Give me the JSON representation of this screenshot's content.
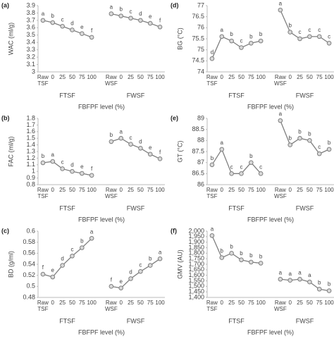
{
  "chart_data": [
    {
      "type": "line",
      "panel": "(a)",
      "y_label": "WAC (ml/g)",
      "x_label": "FBFPF level (%)",
      "groups": [
        "FTSF",
        "FWSF"
      ],
      "categories": [
        "Raw TSF",
        "0",
        "25",
        "50",
        "75",
        "100",
        null,
        "Raw WSF",
        "0",
        "25",
        "50",
        "75",
        "100"
      ],
      "series": [
        {
          "color": "#7f7f7f",
          "values": [
            3.7,
            3.67,
            3.62,
            3.57,
            3.52,
            3.47,
            null,
            3.79,
            3.76,
            3.73,
            3.7,
            3.66,
            3.61
          ]
        }
      ],
      "annotations": [
        "a",
        "b",
        "c",
        "d",
        "e",
        "f",
        null,
        "a",
        "b",
        "c",
        "d",
        "e",
        "f"
      ],
      "ylim": [
        3,
        3.9
      ],
      "yticks": [
        3,
        3.1,
        3.2,
        3.3,
        3.4,
        3.5,
        3.6,
        3.7,
        3.8,
        3.9
      ]
    },
    {
      "type": "line",
      "panel": "(d)",
      "y_label": "BG (°C)",
      "x_label": "FBFPF level (%)",
      "groups": [
        "FTSF",
        "FWSF"
      ],
      "categories": [
        "Raw TSF",
        "0",
        "25",
        "50",
        "75",
        "100",
        null,
        "Raw WSF",
        "0",
        "25",
        "50",
        "75",
        "100"
      ],
      "series": [
        {
          "color": "#7f7f7f",
          "values": [
            74.6,
            75.6,
            75.4,
            75.1,
            75.3,
            75.4,
            null,
            76.8,
            75.8,
            75.5,
            75.6,
            75.6,
            75.3
          ]
        }
      ],
      "annotations": [
        "d",
        "a",
        "b",
        "c",
        "b",
        "b",
        null,
        "a",
        "b",
        "c",
        "c",
        "c",
        "c"
      ],
      "ylim": [
        74,
        77
      ],
      "yticks": [
        74,
        74.5,
        75,
        75.5,
        76,
        76.5,
        77
      ]
    },
    {
      "type": "line",
      "panel": "(b)",
      "y_label": "FAC (ml/g)",
      "x_label": "FBFPF level (%)",
      "groups": [
        "FTSF",
        "FWSF"
      ],
      "categories": [
        "Raw TSF",
        "0",
        "25",
        "50",
        "75",
        "100",
        null,
        "Raw WSF",
        "0",
        "25",
        "50",
        "75",
        "100"
      ],
      "series": [
        {
          "color": "#7f7f7f",
          "values": [
            1.13,
            1.15,
            1.04,
            1.0,
            0.97,
            0.94,
            null,
            1.45,
            1.5,
            1.41,
            1.35,
            1.26,
            1.19
          ]
        }
      ],
      "annotations": [
        "b",
        "a",
        "c",
        "d",
        "e",
        "f",
        null,
        "b",
        "a",
        "c",
        "d",
        "e",
        "f"
      ],
      "ylim": [
        0.8,
        1.8
      ],
      "yticks": [
        0.8,
        0.9,
        1,
        1.1,
        1.2,
        1.3,
        1.4,
        1.5,
        1.6,
        1.7,
        1.8
      ]
    },
    {
      "type": "line",
      "panel": "(e)",
      "y_label": "GT (°C)",
      "x_label": "FBFPF level (%)",
      "groups": [
        "FTSF",
        "FWSF"
      ],
      "categories": [
        "Raw TSF",
        "0",
        "25",
        "50",
        "75",
        "100",
        null,
        "Raw WSF",
        "0",
        "25",
        "50",
        "75",
        "100"
      ],
      "series": [
        {
          "color": "#7f7f7f",
          "values": [
            86.9,
            87.6,
            86.5,
            86.5,
            87.0,
            86.5,
            null,
            88.9,
            87.8,
            88.1,
            88.0,
            87.4,
            87.6
          ]
        }
      ],
      "annotations": [
        "b",
        "a",
        "c",
        "c",
        "b",
        "c",
        null,
        "a",
        "b",
        "b",
        "b",
        "c",
        "b"
      ],
      "ylim": [
        86,
        89
      ],
      "yticks": [
        86,
        86.5,
        87,
        87.5,
        88,
        88.5,
        89
      ]
    },
    {
      "type": "line",
      "panel": "(c)",
      "y_label": "BD (g/ml)",
      "x_label": "FBFPF level (%)",
      "groups": [
        "FTSF",
        "FWSF"
      ],
      "categories": [
        "Raw TSF",
        "0",
        "25",
        "50",
        "75",
        "100",
        null,
        "Raw WSF",
        "0",
        "25",
        "50",
        "75",
        "100"
      ],
      "series": [
        {
          "color": "#7f7f7f",
          "values": [
            0.522,
            0.517,
            0.538,
            0.555,
            0.57,
            0.587,
            null,
            0.5,
            0.497,
            0.514,
            0.527,
            0.538,
            0.55
          ]
        }
      ],
      "annotations": [
        "f",
        "e",
        "d",
        "c",
        "b",
        "a",
        null,
        "f",
        "e",
        "d",
        "c",
        "b",
        "a"
      ],
      "ylim": [
        0.48,
        0.6
      ],
      "yticks": [
        0.48,
        0.5,
        0.52,
        0.54,
        0.56,
        0.58,
        0.6
      ]
    },
    {
      "type": "line",
      "panel": "(f)",
      "y_label": "GMV (AU)",
      "x_label": "FBFPF level (%)",
      "groups": [
        "FTSF",
        "FWSF"
      ],
      "categories": [
        "Raw TSF",
        "0",
        "25",
        "50",
        "75",
        "100",
        null,
        "Raw WSF",
        "0",
        "25",
        "50",
        "75",
        "100"
      ],
      "series": [
        {
          "color": "#7f7f7f",
          "values": [
            1960,
            1760,
            1800,
            1740,
            1720,
            1710,
            null,
            1565,
            1555,
            1565,
            1540,
            1475,
            1460
          ]
        }
      ],
      "annotations": [
        "a",
        "b",
        "b",
        "b",
        "b",
        "b",
        null,
        "a",
        "a",
        "a",
        "a",
        "b",
        "b"
      ],
      "ylim": [
        1400,
        2000
      ],
      "yticks": [
        {
          "value": 1400,
          "label": "1,400"
        },
        {
          "value": 1450,
          "label": "1,450"
        },
        {
          "value": 1500,
          "label": "1,500"
        },
        {
          "value": 1550,
          "label": "1,550"
        },
        {
          "value": 1600,
          "label": "1,600"
        },
        {
          "value": 1650,
          "label": "1,650"
        },
        {
          "value": 1700,
          "label": "1,700"
        },
        {
          "value": 1750,
          "label": "1,750"
        },
        {
          "value": 1800,
          "label": "1,800"
        },
        {
          "value": 1850,
          "label": "1,850"
        },
        {
          "value": 1900,
          "label": "1,900"
        },
        {
          "value": 1950,
          "label": "1,950"
        },
        {
          "value": 2000,
          "label": "2,000"
        }
      ]
    }
  ]
}
